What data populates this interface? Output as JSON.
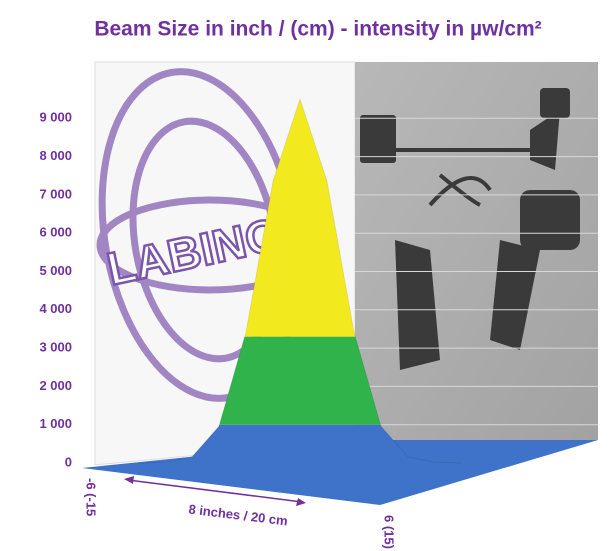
{
  "chart_data": {
    "type": "surface",
    "title": "Beam Size in inch / (cm) - intensity in µw/cm²",
    "annotation": "8 inches / 20 cm",
    "logo_text": "LABINO",
    "ylim": [
      0,
      10000
    ],
    "yticks": [
      0,
      {
        "value": 1000,
        "label": "1 000"
      },
      {
        "value": 2000,
        "label": "2 000"
      },
      {
        "value": 3000,
        "label": "3 000"
      },
      {
        "value": 4000,
        "label": "4 000"
      },
      {
        "value": 5000,
        "label": "5 000"
      },
      {
        "value": 6000,
        "label": "6 000"
      },
      {
        "value": 7000,
        "label": "7 000"
      },
      {
        "value": 8000,
        "label": "8 000"
      },
      {
        "value": 9000,
        "label": "9 000"
      }
    ],
    "xlim": [
      -6,
      6
    ],
    "xticks": [
      {
        "value": -6,
        "label": "-6 (-15"
      },
      {
        "value": 6,
        "label": "6 (15)"
      }
    ],
    "x": [
      -6,
      -5,
      -4,
      -3,
      -2,
      -1,
      0,
      1,
      2,
      3,
      4,
      5,
      6
    ],
    "values": [
      0,
      20,
      160,
      960,
      3420,
      7360,
      9500,
      7360,
      3420,
      960,
      160,
      20,
      0
    ],
    "bands": [
      {
        "from": 0,
        "to": 1000,
        "color": "#3e73c9"
      },
      {
        "from": 1000,
        "to": 3300,
        "color": "#2fb34a"
      },
      {
        "from": 3300,
        "to": 10000,
        "color": "#f2ea1e"
      }
    ],
    "grid": true
  }
}
